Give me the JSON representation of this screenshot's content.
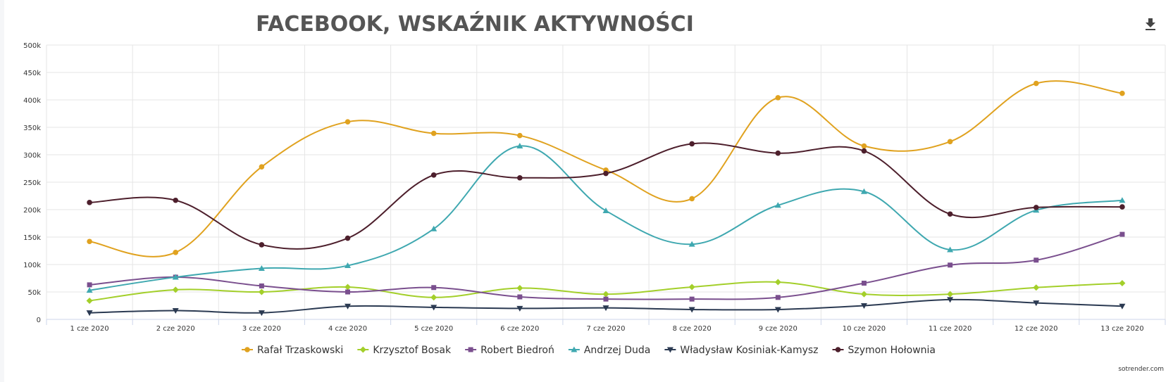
{
  "chart_data": {
    "type": "line",
    "title": "FACEBOOK, WSKAŹNIK AKTYWNOŚCI",
    "categories": [
      "1 cze 2020",
      "2 cze 2020",
      "3 cze 2020",
      "4 cze 2020",
      "5 cze 2020",
      "6 cze 2020",
      "7 cze 2020",
      "8 cze 2020",
      "9 cze 2020",
      "10 cze 2020",
      "11 cze 2020",
      "12 cze 2020",
      "13 cze 2020"
    ],
    "y_ticks": [
      0,
      50000,
      100000,
      150000,
      200000,
      250000,
      300000,
      350000,
      400000,
      450000,
      500000
    ],
    "y_tick_labels": [
      "0",
      "50k",
      "100k",
      "150k",
      "200k",
      "250k",
      "300k",
      "350k",
      "400k",
      "450k",
      "500k"
    ],
    "ylim": [
      0,
      500000
    ],
    "grid": true,
    "legend_position": "bottom",
    "credit": "sotrender.com",
    "series": [
      {
        "name": "Rafał Trzaskowski",
        "color": "#e0a21f",
        "marker": "circle",
        "values": [
          142000,
          122000,
          278000,
          360000,
          339000,
          335000,
          272000,
          220000,
          404000,
          316000,
          324000,
          430000,
          412000
        ]
      },
      {
        "name": "Krzysztof Bosak",
        "color": "#a3cf2a",
        "marker": "diamond",
        "values": [
          34000,
          54000,
          50000,
          59000,
          40000,
          57000,
          46000,
          59000,
          68000,
          46000,
          46000,
          58000,
          66000
        ]
      },
      {
        "name": "Robert Biedroń",
        "color": "#7a4f8e",
        "marker": "square",
        "values": [
          63000,
          77000,
          61000,
          50000,
          58000,
          41000,
          37000,
          37000,
          40000,
          66000,
          99000,
          108000,
          155000
        ]
      },
      {
        "name": "Andrzej Duda",
        "color": "#3fa8b0",
        "marker": "triangle",
        "values": [
          53000,
          77000,
          93000,
          98000,
          165000,
          316000,
          198000,
          137000,
          208000,
          233000,
          127000,
          199000,
          217000
        ]
      },
      {
        "name": "Władysław Kosiniak-Kamysz",
        "color": "#2b3a52",
        "marker": "triangle-down",
        "values": [
          12000,
          16000,
          12000,
          24000,
          22000,
          20000,
          21000,
          18000,
          18000,
          25000,
          36000,
          30000,
          24000
        ]
      },
      {
        "name": "Szymon Hołownia",
        "color": "#4d1f2c",
        "marker": "circle",
        "values": [
          213000,
          217000,
          136000,
          148000,
          263000,
          258000,
          266000,
          320000,
          303000,
          307000,
          192000,
          204000,
          205000
        ]
      }
    ]
  },
  "icons": {
    "download": "download-icon"
  }
}
